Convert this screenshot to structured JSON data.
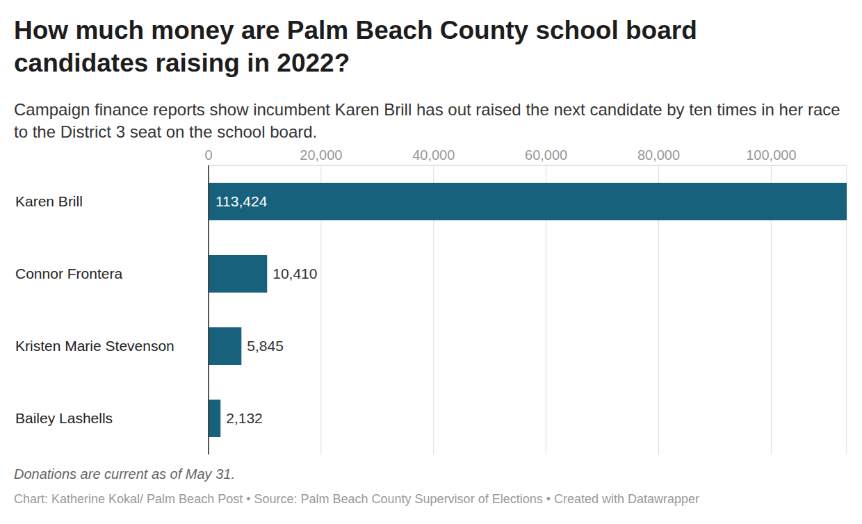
{
  "chart_data": {
    "type": "bar",
    "title": "How much money are Palm Beach County school board candidates raising in 2022?",
    "subtitle": "Campaign finance reports show incumbent Karen Brill has out raised the next candidate by ten times in her race to the District 3 seat on the school board.",
    "note": "Donations are current as of May 31.",
    "source": "Chart: Katherine Kokal/ Palm Beach Post • Source: Palm Beach County Supervisor of Elections • Created with Datawrapper",
    "categories": [
      "Karen Brill",
      "Connor Frontera",
      "Kristen Marie Stevenson",
      "Bailey Lashells"
    ],
    "values": [
      113424,
      10410,
      5845,
      2132
    ],
    "value_labels": [
      "113,424",
      "10,410",
      "5,845",
      "2,132"
    ],
    "color": "#18617c",
    "orientation": "horizontal",
    "data_labels": true,
    "grid": true,
    "xlim": [
      0,
      113424
    ],
    "xticks": [
      0,
      {
        "value": 20000,
        "label": "20,000"
      },
      {
        "value": 40000,
        "label": "40,000"
      },
      {
        "value": 60000,
        "label": "60,000"
      },
      {
        "value": 80000,
        "label": "80,000"
      },
      {
        "value": 100000,
        "label": "100,000"
      }
    ]
  }
}
